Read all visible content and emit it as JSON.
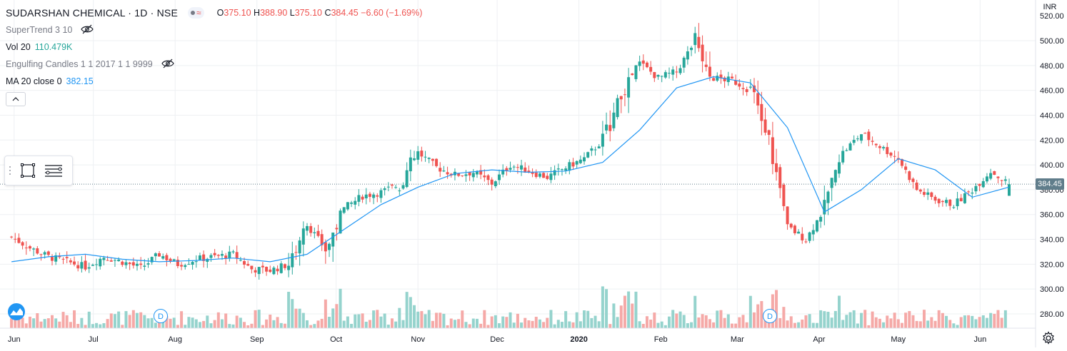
{
  "header": {
    "title": "SUDARSHAN CHEMICAL · 1D · NSE",
    "ohlc": {
      "o_label": "O",
      "o_value": "375.10",
      "h_label": "H",
      "h_value": "388.90",
      "l_label": "L",
      "l_value": "375.10",
      "c_label": "C",
      "c_value": "384.45",
      "change": "−6.60 (−1.69%)"
    }
  },
  "indicators": {
    "supertrend": {
      "label": "SuperTrend 3 10"
    },
    "volume": {
      "label": "Vol 20",
      "value": "110.479K"
    },
    "engulfing": {
      "label": "Engulfing Candles 1 1 2017 1 1 9999"
    },
    "ma": {
      "label": "MA 20 close 0",
      "value": "382.15"
    }
  },
  "price_scale": {
    "currency": "INR",
    "last_price_tag": "384.45",
    "top_label_partial": "520.00"
  },
  "dividend_markers": [
    "D",
    "D"
  ],
  "colors": {
    "up": "#26a69a",
    "down": "#ef5350",
    "vol_up": "#95d3cd",
    "vol_down": "#f5a9a7",
    "ma": "#2196f3",
    "grid": "#eef0f3",
    "last_price_line": "#607d8b"
  },
  "icons": [
    "eye-off-icon",
    "chevron-up-icon",
    "rectangle-tool-icon",
    "lines-tool-icon",
    "tradingview-logo-icon",
    "gear-icon"
  ],
  "chart_data": {
    "type": "candlestick",
    "title": "SUDARSHAN CHEMICAL · 1D · NSE",
    "currency": "INR",
    "ylim": [
      270,
      525
    ],
    "y_ticks": [
      280,
      300,
      320,
      340,
      360,
      380,
      400,
      420,
      440,
      460,
      480,
      500
    ],
    "x_tick_labels": [
      "Jun",
      "Jul",
      "Aug",
      "Sep",
      "Oct",
      "Nov",
      "Dec",
      "2020",
      "Feb",
      "Mar",
      "Apr",
      "May",
      "Jun"
    ],
    "x_tick_dates": [
      "2019-06-01",
      "2019-07-01",
      "2019-08-01",
      "2019-09-01",
      "2019-10-01",
      "2019-11-01",
      "2019-12-01",
      "2020-01-01",
      "2020-02-01",
      "2020-03-01",
      "2020-04-01",
      "2020-05-01",
      "2020-06-01"
    ],
    "date_range": [
      "2019-05-28",
      "2020-06-12"
    ],
    "closes_weekly": [
      {
        "date": "2019-05-31",
        "close": 342
      },
      {
        "date": "2019-06-07",
        "close": 333
      },
      {
        "date": "2019-06-14",
        "close": 326
      },
      {
        "date": "2019-06-21",
        "close": 322
      },
      {
        "date": "2019-06-28",
        "close": 318
      },
      {
        "date": "2019-07-05",
        "close": 326
      },
      {
        "date": "2019-07-12",
        "close": 322
      },
      {
        "date": "2019-07-19",
        "close": 317
      },
      {
        "date": "2019-07-26",
        "close": 328
      },
      {
        "date": "2019-08-02",
        "close": 320
      },
      {
        "date": "2019-08-09",
        "close": 324
      },
      {
        "date": "2019-08-16",
        "close": 326
      },
      {
        "date": "2019-08-23",
        "close": 328
      },
      {
        "date": "2019-08-30",
        "close": 316
      },
      {
        "date": "2019-09-06",
        "close": 315
      },
      {
        "date": "2019-09-13",
        "close": 320
      },
      {
        "date": "2019-09-20",
        "close": 352
      },
      {
        "date": "2019-09-27",
        "close": 332
      },
      {
        "date": "2019-10-04",
        "close": 365
      },
      {
        "date": "2019-10-11",
        "close": 375
      },
      {
        "date": "2019-10-18",
        "close": 378
      },
      {
        "date": "2019-10-25",
        "close": 384
      },
      {
        "date": "2019-11-01",
        "close": 410
      },
      {
        "date": "2019-11-08",
        "close": 398
      },
      {
        "date": "2019-11-15",
        "close": 392
      },
      {
        "date": "2019-11-22",
        "close": 394
      },
      {
        "date": "2019-11-29",
        "close": 385
      },
      {
        "date": "2019-12-06",
        "close": 400
      },
      {
        "date": "2019-12-13",
        "close": 395
      },
      {
        "date": "2019-12-20",
        "close": 390
      },
      {
        "date": "2019-12-27",
        "close": 398
      },
      {
        "date": "2020-01-03",
        "close": 405
      },
      {
        "date": "2020-01-10",
        "close": 420
      },
      {
        "date": "2020-01-17",
        "close": 455
      },
      {
        "date": "2020-01-24",
        "close": 482
      },
      {
        "date": "2020-01-31",
        "close": 470
      },
      {
        "date": "2020-02-07",
        "close": 475
      },
      {
        "date": "2020-02-14",
        "close": 500
      },
      {
        "date": "2020-02-21",
        "close": 470
      },
      {
        "date": "2020-02-28",
        "close": 468
      },
      {
        "date": "2020-03-06",
        "close": 460
      },
      {
        "date": "2020-03-13",
        "close": 420
      },
      {
        "date": "2020-03-20",
        "close": 350
      },
      {
        "date": "2020-03-27",
        "close": 340
      },
      {
        "date": "2020-04-03",
        "close": 365
      },
      {
        "date": "2020-04-10",
        "close": 410
      },
      {
        "date": "2020-04-17",
        "close": 425
      },
      {
        "date": "2020-04-24",
        "close": 415
      },
      {
        "date": "2020-05-01",
        "close": 405
      },
      {
        "date": "2020-05-08",
        "close": 380
      },
      {
        "date": "2020-05-15",
        "close": 372
      },
      {
        "date": "2020-05-22",
        "close": 368
      },
      {
        "date": "2020-05-29",
        "close": 380
      },
      {
        "date": "2020-06-05",
        "close": 395
      },
      {
        "date": "2020-06-12",
        "close": 384.45
      }
    ],
    "ma20_weekly": [
      {
        "date": "2019-05-31",
        "value": 322
      },
      {
        "date": "2019-06-14",
        "value": 326
      },
      {
        "date": "2019-06-28",
        "value": 328
      },
      {
        "date": "2019-07-12",
        "value": 324
      },
      {
        "date": "2019-07-26",
        "value": 322
      },
      {
        "date": "2019-08-09",
        "value": 323
      },
      {
        "date": "2019-08-23",
        "value": 325
      },
      {
        "date": "2019-09-06",
        "value": 322
      },
      {
        "date": "2019-09-20",
        "value": 328
      },
      {
        "date": "2019-10-04",
        "value": 348
      },
      {
        "date": "2019-10-18",
        "value": 368
      },
      {
        "date": "2019-11-01",
        "value": 382
      },
      {
        "date": "2019-11-15",
        "value": 393
      },
      {
        "date": "2019-11-29",
        "value": 396
      },
      {
        "date": "2019-12-13",
        "value": 394
      },
      {
        "date": "2019-12-27",
        "value": 395
      },
      {
        "date": "2020-01-10",
        "value": 402
      },
      {
        "date": "2020-01-24",
        "value": 428
      },
      {
        "date": "2020-02-07",
        "value": 462
      },
      {
        "date": "2020-02-21",
        "value": 471
      },
      {
        "date": "2020-03-06",
        "value": 466
      },
      {
        "date": "2020-03-20",
        "value": 430
      },
      {
        "date": "2020-04-03",
        "value": 362
      },
      {
        "date": "2020-04-17",
        "value": 380
      },
      {
        "date": "2020-05-01",
        "value": 405
      },
      {
        "date": "2020-05-15",
        "value": 396
      },
      {
        "date": "2020-05-29",
        "value": 374
      },
      {
        "date": "2020-06-12",
        "value": 382.15
      }
    ],
    "last_close": 384.45,
    "ma20_last": 382.15,
    "volume_last": "110.479K"
  }
}
